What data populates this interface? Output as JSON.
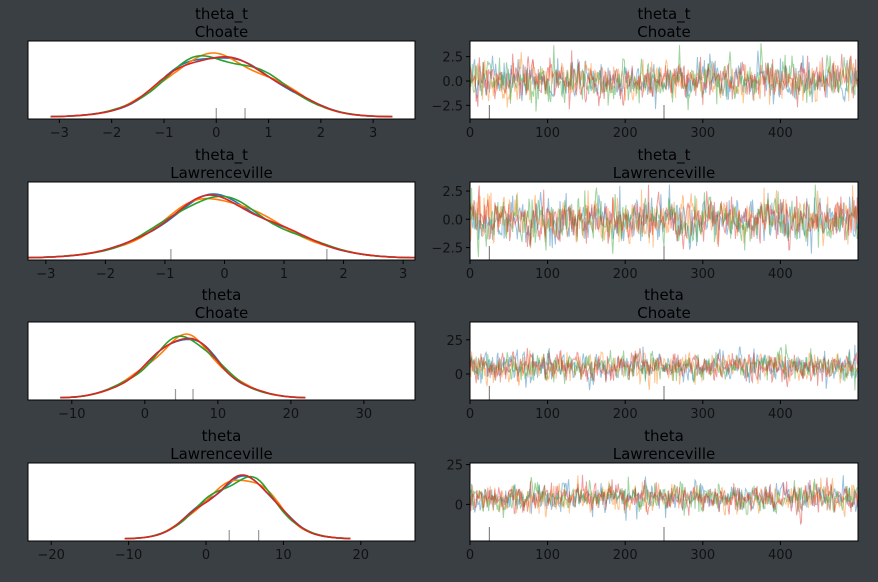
{
  "colors": {
    "background": "#3a3f44",
    "text": "#000000",
    "tick_text": "#111111",
    "series": [
      "#1f77b4",
      "#ff7f0e",
      "#2ca02c",
      "#d62728"
    ]
  },
  "chart_data": [
    {
      "type": "line",
      "kind": "density",
      "title": [
        "theta_t",
        "Choate"
      ],
      "xlim": [
        -3.6,
        3.8
      ],
      "xticks": [
        -3,
        -2,
        -1,
        0,
        1,
        2,
        3
      ],
      "center": 0.1,
      "spread": 1.0,
      "rug": [
        0.0,
        0.55
      ]
    },
    {
      "type": "line",
      "kind": "trace",
      "title": [
        "theta_t",
        "Choate"
      ],
      "xlim": [
        0,
        500
      ],
      "ylim": [
        -3.9,
        4.1
      ],
      "xticks": [
        0,
        100,
        200,
        300,
        400
      ],
      "yticks": [
        -2.5,
        0.0,
        2.5
      ],
      "yticklabels": [
        "−2.5",
        "0.0",
        "2.5"
      ],
      "center": 0.1,
      "spread": 1.0,
      "rug": [
        25,
        250
      ]
    },
    {
      "type": "line",
      "kind": "density",
      "title": [
        "theta_t",
        "Lawrenceville"
      ],
      "xlim": [
        -3.3,
        3.2
      ],
      "xticks": [
        -3,
        -2,
        -1,
        0,
        1,
        2,
        3
      ],
      "center": -0.05,
      "spread": 1.0,
      "rug": [
        -0.9,
        1.72
      ]
    },
    {
      "type": "line",
      "kind": "trace",
      "title": [
        "theta_t",
        "Lawrenceville"
      ],
      "xlim": [
        0,
        500
      ],
      "ylim": [
        -3.6,
        3.3
      ],
      "xticks": [
        0,
        100,
        200,
        300,
        400
      ],
      "yticks": [
        -2.5,
        0.0,
        2.5
      ],
      "yticklabels": [
        "−2.5",
        "0.0",
        "2.5"
      ],
      "center": -0.05,
      "spread": 1.0,
      "rug": [
        25,
        250
      ]
    },
    {
      "type": "line",
      "kind": "density",
      "title": [
        "theta",
        "Choate"
      ],
      "xlim": [
        -16,
        37
      ],
      "xticks": [
        -10,
        0,
        10,
        20,
        30
      ],
      "center": 5.2,
      "spread": 5.2,
      "rug": [
        4.2,
        6.6
      ]
    },
    {
      "type": "line",
      "kind": "trace",
      "title": [
        "theta",
        "Choate"
      ],
      "xlim": [
        0,
        500
      ],
      "ylim": [
        -19,
        38
      ],
      "xticks": [
        0,
        100,
        200,
        300,
        400
      ],
      "yticks": [
        0,
        25
      ],
      "yticklabels": [
        "0",
        "25"
      ],
      "center": 5.2,
      "spread": 5.2,
      "rug": [
        25,
        250
      ]
    },
    {
      "type": "line",
      "kind": "density",
      "title": [
        "theta",
        "Lawrenceville"
      ],
      "xlim": [
        -23,
        27
      ],
      "xticks": [
        -20,
        -10,
        0,
        10,
        20
      ],
      "center": 4.2,
      "spread": 4.5,
      "rug": [
        3.0,
        6.8
      ]
    },
    {
      "type": "line",
      "kind": "trace",
      "title": [
        "theta",
        "Lawrenceville"
      ],
      "xlim": [
        0,
        500
      ],
      "ylim": [
        -23,
        26
      ],
      "xticks": [
        0,
        100,
        200,
        300,
        400
      ],
      "yticks": [
        0,
        25
      ],
      "yticklabels": [
        "0",
        "25"
      ],
      "center": 4.2,
      "spread": 4.5,
      "rug": [
        25,
        250
      ]
    }
  ]
}
